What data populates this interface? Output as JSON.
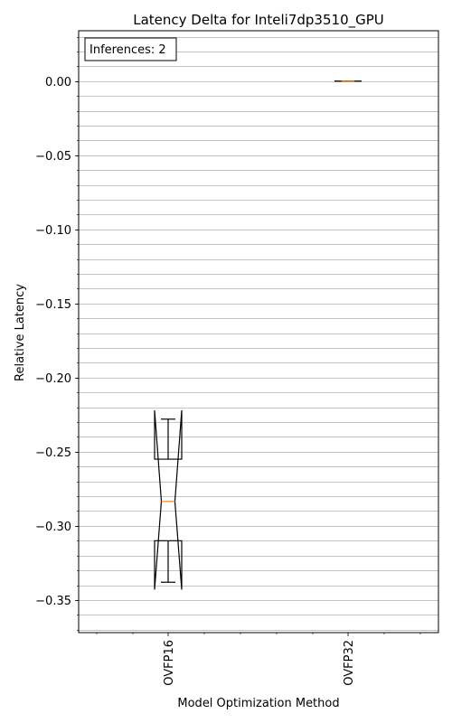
{
  "chart_data": {
    "type": "boxplot",
    "title": "Latency Delta  for Inteli7dp3510_GPU",
    "xlabel": "Model Optimization Method",
    "ylabel": "Relative Latency",
    "annotation": "Inferences: 2",
    "categories": [
      "OVFP16",
      "OVFP32"
    ],
    "ylim": [
      -0.372,
      0.034
    ],
    "yticks": [
      {
        "value": 0.0,
        "label": "0.00"
      },
      {
        "value": -0.05,
        "label": "−0.05"
      },
      {
        "value": -0.1,
        "label": "−0.10"
      },
      {
        "value": -0.15,
        "label": "−0.15"
      },
      {
        "value": -0.2,
        "label": "−0.20"
      },
      {
        "value": -0.25,
        "label": "−0.25"
      },
      {
        "value": -0.3,
        "label": "−0.30"
      },
      {
        "value": -0.35,
        "label": "−0.35"
      }
    ],
    "minor_step": 0.01,
    "grid": true,
    "notched": true,
    "boxes": [
      {
        "category": "OVFP16",
        "whisker_low": -0.338,
        "q1": -0.31,
        "median": -0.2835,
        "q3": -0.255,
        "whisker_high": -0.228,
        "notch_low": -0.343,
        "notch_high": -0.222
      },
      {
        "category": "OVFP32",
        "whisker_low": 0.0,
        "q1": 0.0,
        "median": 0.0,
        "q3": 0.0,
        "whisker_high": 0.0,
        "notch_low": 0.0,
        "notch_high": 0.0
      }
    ],
    "colors": {
      "box": "#000000",
      "median": "#ff7f0e",
      "grid": "#b0b0b0"
    }
  }
}
